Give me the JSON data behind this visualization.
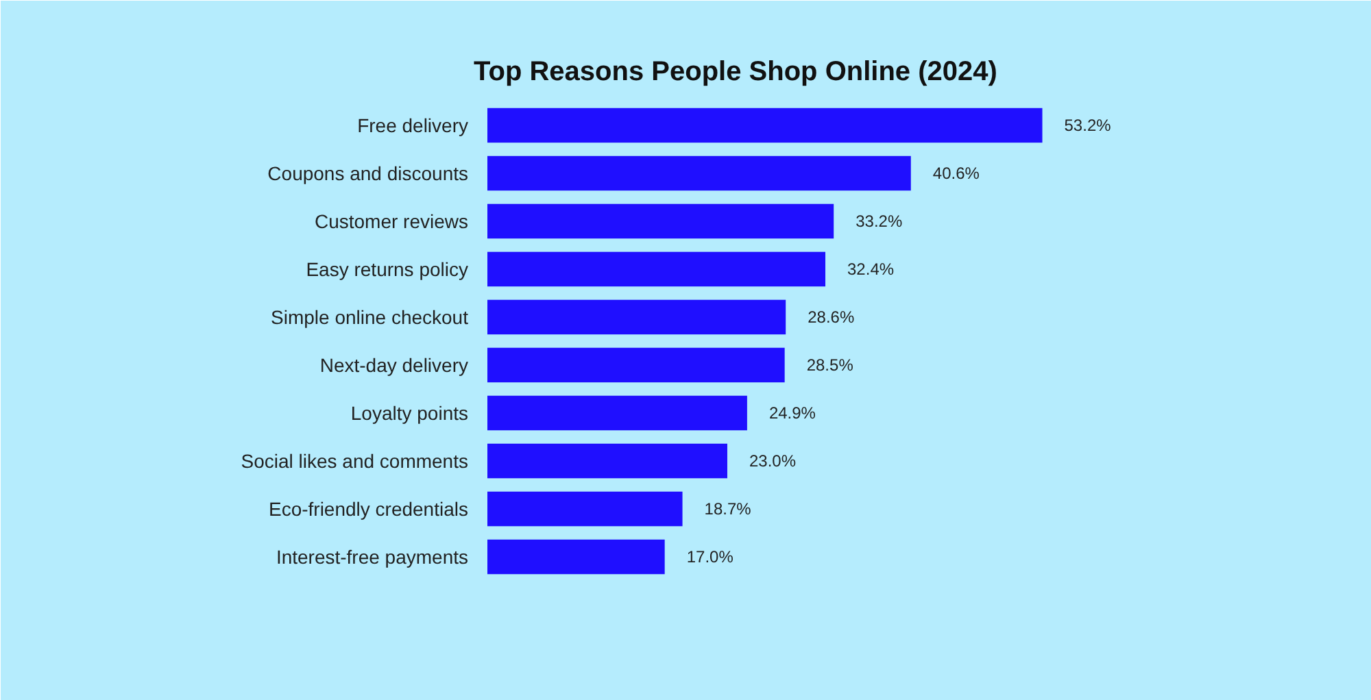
{
  "chart_data": {
    "type": "bar",
    "orientation": "horizontal",
    "title": "Top Reasons People Shop Online (2024)",
    "categories": [
      "Free delivery",
      "Coupons and discounts",
      "Customer reviews",
      "Easy returns policy",
      "Simple online checkout",
      "Next-day delivery",
      "Loyalty points",
      "Social likes and comments",
      "Eco-friendly credentials",
      "Interest-free payments"
    ],
    "values": [
      53.2,
      40.6,
      33.2,
      32.4,
      28.6,
      28.5,
      24.9,
      23.0,
      18.7,
      17.0
    ],
    "value_labels": [
      "53.2%",
      "40.6%",
      "33.2%",
      "32.4%",
      "28.6%",
      "28.5%",
      "24.9%",
      "23.0%",
      "18.7%",
      "17.0%"
    ],
    "color": "#1f0fff",
    "grid": false
  }
}
